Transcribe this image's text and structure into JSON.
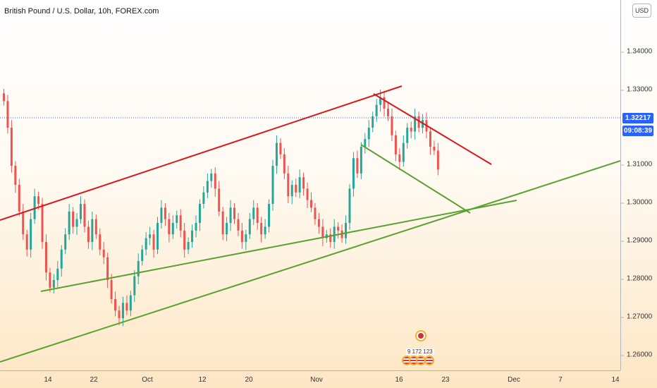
{
  "header": {
    "title": "British Pound / U.S. Dollar, 10h, FOREX.com"
  },
  "currency_button": "USD",
  "price_axis": {
    "ticks": [
      "1.34000",
      "1.33000",
      "1.31000",
      "1.30000",
      "1.29000",
      "1.28000",
      "1.27000",
      "1.26000"
    ]
  },
  "time_axis": {
    "ticks": [
      "14",
      "22",
      "Oct",
      "12",
      "20",
      "Nov",
      "16",
      "23",
      "Dec",
      "7",
      "14"
    ]
  },
  "last_price": "1.32217",
  "countdown": "09:08:39",
  "events": {
    "count_label": "9 172 123"
  },
  "colors": {
    "bull": "#26a69a",
    "bear": "#ef5350",
    "resistance": "#d8161e",
    "support": "#5aa131"
  },
  "chart_data": {
    "type": "candlestick",
    "symbol": "GBPUSD",
    "interval": "10h",
    "ylim": [
      1.255,
      1.345
    ],
    "last_price": 1.32217,
    "trendlines": [
      {
        "color": "red",
        "from": [
          "Aug 31",
          1.296
        ],
        "to": [
          "Nov 19",
          1.331
        ]
      },
      {
        "color": "red",
        "from": [
          "Nov 11",
          1.329
        ],
        "to": [
          "Nov 28",
          1.311
        ]
      },
      {
        "color": "green",
        "from": [
          "Sep 13",
          1.277
        ],
        "to": [
          "Dec 1",
          1.3005
        ]
      },
      {
        "color": "green",
        "from": [
          "Sep 5",
          1.258
        ],
        "to": [
          "Dec 14",
          1.311
        ]
      },
      {
        "color": "green",
        "from": [
          "Nov 6",
          1.316
        ],
        "to": [
          "Nov 25",
          1.297
        ]
      }
    ],
    "closes": [
      1.327,
      1.32,
      1.31,
      1.305,
      1.298,
      1.292,
      1.288,
      1.296,
      1.302,
      1.3,
      1.29,
      1.282,
      1.278,
      1.28,
      1.283,
      1.288,
      1.292,
      1.298,
      1.294,
      1.296,
      1.3,
      1.294,
      1.29,
      1.296,
      1.292,
      1.288,
      1.286,
      1.28,
      1.275,
      1.272,
      1.27,
      1.274,
      1.272,
      1.276,
      1.281,
      1.285,
      1.288,
      1.291,
      1.292,
      1.288,
      1.295,
      1.299,
      1.296,
      1.292,
      1.295,
      1.297,
      1.293,
      1.288,
      1.29,
      1.293,
      1.295,
      1.3,
      1.303,
      1.306,
      1.308,
      1.304,
      1.298,
      1.292,
      1.295,
      1.299,
      1.296,
      1.293,
      1.29,
      1.292,
      1.296,
      1.299,
      1.295,
      1.292,
      1.294,
      1.3,
      1.31,
      1.316,
      1.313,
      1.308,
      1.302,
      1.305,
      1.303,
      1.307,
      1.304,
      1.301,
      1.299,
      1.296,
      1.294,
      1.291,
      1.292,
      1.29,
      1.294,
      1.293,
      1.291,
      1.295,
      1.304,
      1.312,
      1.308,
      1.315,
      1.317,
      1.32,
      1.323,
      1.326,
      1.328,
      1.325,
      1.323,
      1.318,
      1.313,
      1.311,
      1.316,
      1.32,
      1.319,
      1.323,
      1.32,
      1.322,
      1.319,
      1.315,
      1.314,
      1.309
    ]
  }
}
